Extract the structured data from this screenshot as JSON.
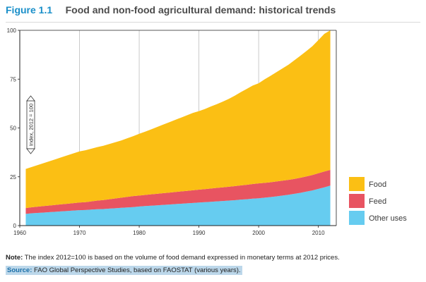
{
  "figure": {
    "number": "Figure 1.1",
    "title": "Food and non-food agricultural demand: historical trends"
  },
  "note": {
    "label": "Note:",
    "text": "The index 2012=100 is based on the volume of food demand expressed in monetary terms at 2012 prices."
  },
  "source": {
    "label": "Source:",
    "text": "FAO Global Perspective Studies, based on FAOSTAT (various years)."
  },
  "chart_data": {
    "type": "area",
    "stacked": true,
    "title": "",
    "xlabel": "",
    "ylabel": "Index, 2012 = 100",
    "xlim": [
      1960,
      2013
    ],
    "ylim": [
      0,
      100
    ],
    "x_ticks": [
      1960,
      1970,
      1980,
      1990,
      2000,
      2010
    ],
    "y_ticks": [
      0,
      25,
      50,
      75,
      100
    ],
    "grid": "vertical",
    "legend_position": "right",
    "x": [
      1961,
      1962,
      1963,
      1964,
      1965,
      1966,
      1967,
      1968,
      1969,
      1970,
      1971,
      1972,
      1973,
      1974,
      1975,
      1976,
      1977,
      1978,
      1979,
      1980,
      1981,
      1982,
      1983,
      1984,
      1985,
      1986,
      1987,
      1988,
      1989,
      1990,
      1991,
      1992,
      1993,
      1994,
      1995,
      1996,
      1997,
      1998,
      1999,
      2000,
      2001,
      2002,
      2003,
      2004,
      2005,
      2006,
      2007,
      2008,
      2009,
      2010,
      2011,
      2012
    ],
    "series": [
      {
        "name": "Other uses",
        "color": "#66ccf0",
        "values": [
          6.0,
          6.3,
          6.5,
          6.7,
          6.9,
          7.1,
          7.3,
          7.5,
          7.7,
          7.9,
          8.0,
          8.2,
          8.4,
          8.5,
          8.7,
          8.9,
          9.1,
          9.3,
          9.5,
          9.8,
          10.0,
          10.2,
          10.4,
          10.6,
          10.8,
          11.0,
          11.2,
          11.4,
          11.6,
          11.8,
          12.0,
          12.2,
          12.4,
          12.6,
          12.8,
          13.0,
          13.3,
          13.5,
          13.8,
          14.0,
          14.3,
          14.6,
          15.0,
          15.4,
          15.8,
          16.3,
          16.8,
          17.4,
          18.0,
          18.8,
          19.6,
          20.5
        ]
      },
      {
        "name": "Feed",
        "color": "#e85461",
        "values": [
          3.0,
          3.1,
          3.2,
          3.3,
          3.4,
          3.5,
          3.6,
          3.7,
          3.8,
          3.9,
          4.0,
          4.2,
          4.4,
          4.6,
          4.8,
          5.0,
          5.2,
          5.4,
          5.6,
          5.6,
          5.7,
          5.8,
          5.9,
          6.0,
          6.1,
          6.2,
          6.3,
          6.4,
          6.5,
          6.6,
          6.7,
          6.8,
          6.9,
          7.0,
          7.1,
          7.2,
          7.3,
          7.4,
          7.5,
          7.6,
          7.6,
          7.6,
          7.6,
          7.6,
          7.6,
          7.6,
          7.7,
          7.8,
          7.9,
          8.0,
          8.1,
          8.0
        ]
      },
      {
        "name": "Food",
        "color": "#fbbf14",
        "values": [
          20.0,
          20.6,
          21.3,
          22.0,
          22.7,
          23.4,
          24.1,
          24.8,
          25.5,
          26.2,
          26.6,
          27.0,
          27.4,
          27.8,
          28.3,
          28.8,
          29.3,
          30.0,
          30.7,
          31.6,
          32.4,
          33.3,
          34.2,
          35.1,
          36.0,
          36.9,
          37.8,
          38.7,
          39.6,
          40.2,
          41.0,
          42.0,
          42.9,
          43.9,
          45.0,
          46.3,
          47.7,
          49.1,
          50.4,
          51.3,
          53.0,
          54.5,
          56.0,
          57.5,
          59.0,
          60.8,
          62.5,
          64.2,
          66.0,
          68.2,
          70.5,
          71.5
        ]
      }
    ],
    "legend": [
      "Food",
      "Feed",
      "Other uses"
    ]
  }
}
